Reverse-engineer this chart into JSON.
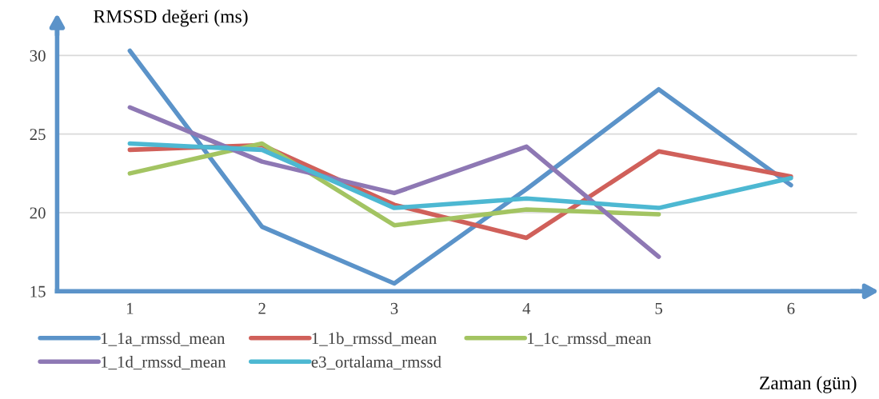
{
  "chart_data": {
    "type": "line",
    "ylabel": "RMSSD değeri (ms)",
    "xlabel": "Zaman (gün)",
    "categories": [
      "1",
      "2",
      "3",
      "4",
      "5",
      "6"
    ],
    "series": [
      {
        "name": "1_1a_rmssd_mean",
        "color": "#5b93c9",
        "values": [
          30.3,
          19.1,
          15.5,
          21.5,
          27.85,
          21.75
        ]
      },
      {
        "name": "1_1b_rmssd_mean",
        "color": "#d0605a",
        "values": [
          24.0,
          24.3,
          20.5,
          18.4,
          23.9,
          22.3
        ]
      },
      {
        "name": "1_1c_rmssd_mean",
        "color": "#a3c462",
        "values": [
          22.5,
          24.4,
          19.2,
          20.2,
          19.9,
          null
        ]
      },
      {
        "name": "1_1d_rmssd_mean",
        "color": "#8e78b4",
        "values": [
          26.7,
          23.25,
          21.25,
          24.2,
          17.2,
          null
        ]
      },
      {
        "name": "e3_ortalama_rmssd",
        "color": "#4db8d2",
        "values": [
          24.4,
          24.0,
          20.3,
          20.9,
          20.3,
          22.2
        ]
      }
    ],
    "ylim": [
      15,
      31.5
    ],
    "yticks": [
      15,
      20,
      25,
      30
    ],
    "grid": "y",
    "legend": "bottom",
    "marker": "none",
    "line_style": "solid"
  }
}
